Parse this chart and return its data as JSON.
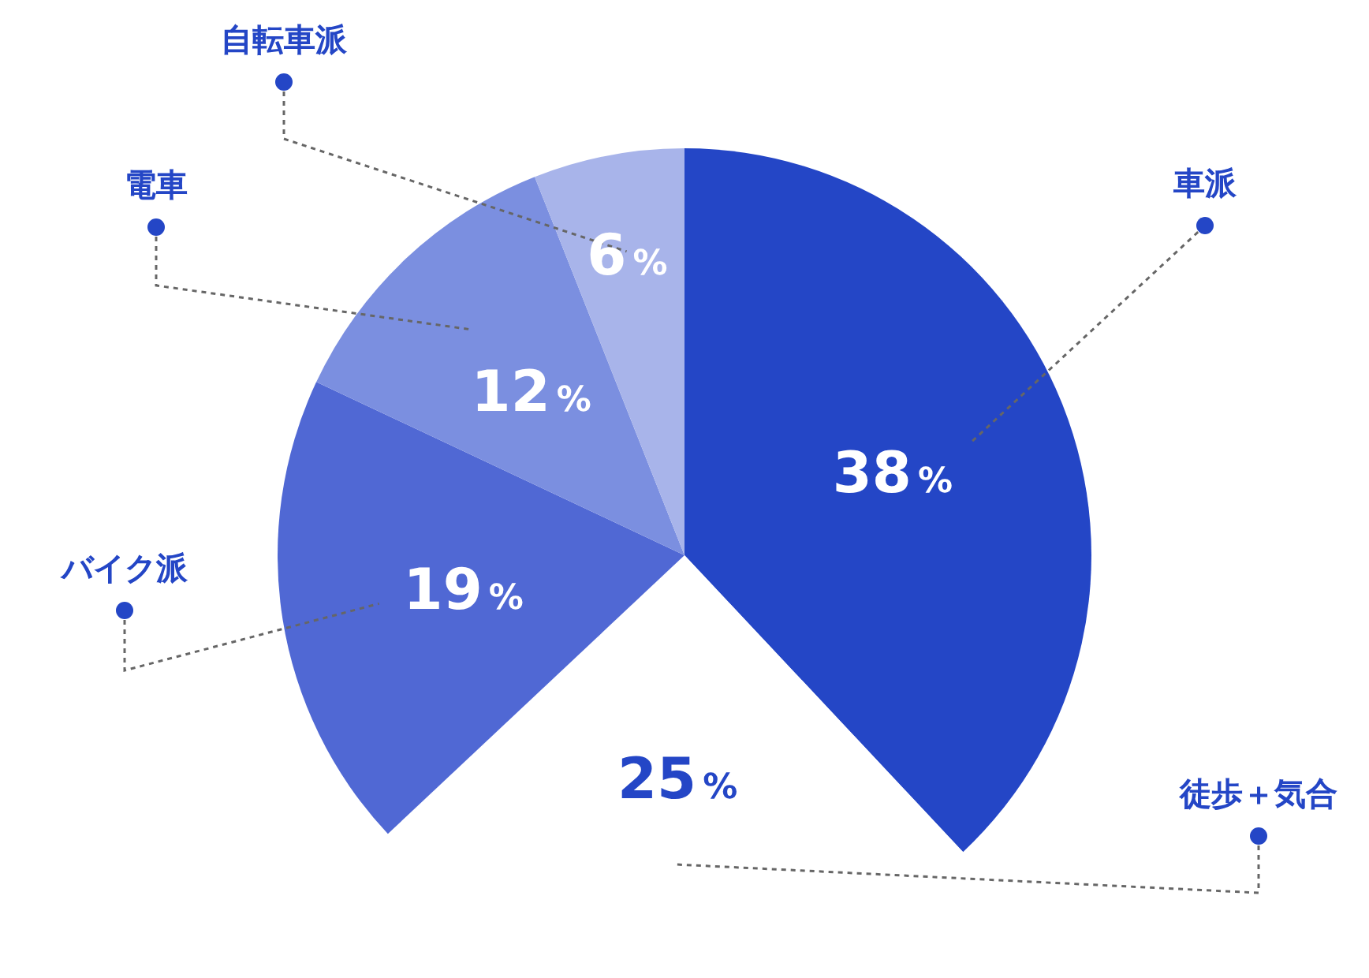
{
  "chart_data": {
    "type": "pie",
    "categories": [
      "車派",
      "徒歩＋気合",
      "バイク派",
      "電車",
      "自転車派"
    ],
    "values": [
      38,
      25,
      19,
      12,
      6
    ],
    "value_labels": [
      "38%",
      "25%",
      "19%",
      "12%",
      "6%"
    ],
    "colors": [
      "#2446c6",
      "#ffffff",
      "#5068d4",
      "#7b8fe0",
      "#a8b4ea"
    ]
  }
}
